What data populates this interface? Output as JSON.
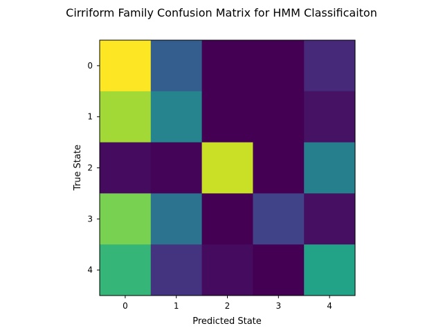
{
  "chart_data": {
    "type": "heatmap",
    "title": "Cirriform Family Confusion Matrix for HMM Classificaiton",
    "xlabel": "Predicted State",
    "ylabel": "True State",
    "x_categories": [
      "0",
      "1",
      "2",
      "3",
      "4"
    ],
    "y_categories": [
      "0",
      "1",
      "2",
      "3",
      "4"
    ],
    "colormap": "viridis",
    "value_range": [
      0,
      1
    ],
    "matrix": [
      [
        1.0,
        0.3,
        0.0,
        0.0,
        0.12
      ],
      [
        0.86,
        0.45,
        0.0,
        0.0,
        0.05
      ],
      [
        0.03,
        0.01,
        0.92,
        0.0,
        0.43
      ],
      [
        0.8,
        0.38,
        0.0,
        0.2,
        0.04
      ],
      [
        0.66,
        0.15,
        0.03,
        0.0,
        0.58
      ]
    ],
    "grid": false,
    "legend": "none"
  }
}
